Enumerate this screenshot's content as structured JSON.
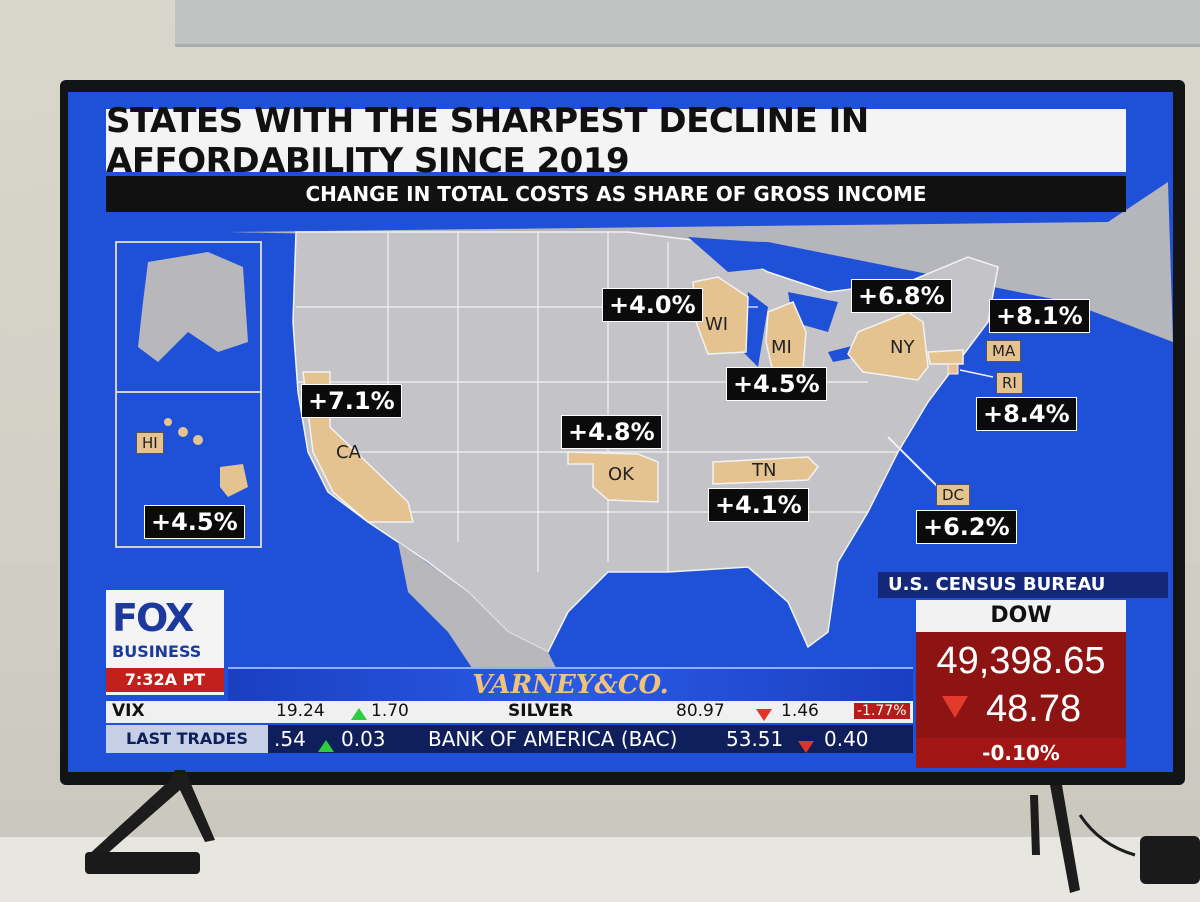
{
  "title": "STATES WITH THE SHARPEST DECLINE IN AFFORDABILITY SINCE 2019",
  "subtitle": "CHANGE IN TOTAL COSTS AS SHARE OF GROSS INCOME",
  "states": [
    {
      "abbr": "CA",
      "value": "+7.1%"
    },
    {
      "abbr": "HI",
      "value": "+4.5%"
    },
    {
      "abbr": "OK",
      "value": "+4.8%"
    },
    {
      "abbr": "WI",
      "value": "+4.0%"
    },
    {
      "abbr": "MI",
      "value": "+4.5%"
    },
    {
      "abbr": "NY",
      "value": "+6.8%"
    },
    {
      "abbr": "MA",
      "value": "+8.1%"
    },
    {
      "abbr": "RI",
      "value": "+8.4%"
    },
    {
      "abbr": "TN",
      "value": "+4.1%"
    },
    {
      "abbr": "DC",
      "value": "+6.2%"
    }
  ],
  "source": "U.S. CENSUS BUREAU",
  "network": {
    "logo_top": "FOX",
    "logo_bottom": "BUSINESS",
    "time": "7:32A PT"
  },
  "show": "VARNEY&CO.",
  "dow": {
    "label": "DOW",
    "value": "49,398.65",
    "change": "48.78",
    "pct": "-0.10%"
  },
  "ticker_top": {
    "left": "VIX",
    "left_value": "19.24",
    "left_change": "1.70",
    "item": "SILVER",
    "price": "80.97",
    "change": "1.46",
    "pct": "-1.77%"
  },
  "ticker_bottom": {
    "label": "LAST TRADES",
    "first_price": ".54",
    "first_change": "0.03",
    "item": "BANK OF AMERICA (BAC)",
    "price": "53.51",
    "change": "0.40"
  },
  "colors": {
    "ocean": "#1e50d8",
    "land": "#c4c4c8",
    "highlight": "#e5c391",
    "dow_bg": "#8d1412"
  }
}
